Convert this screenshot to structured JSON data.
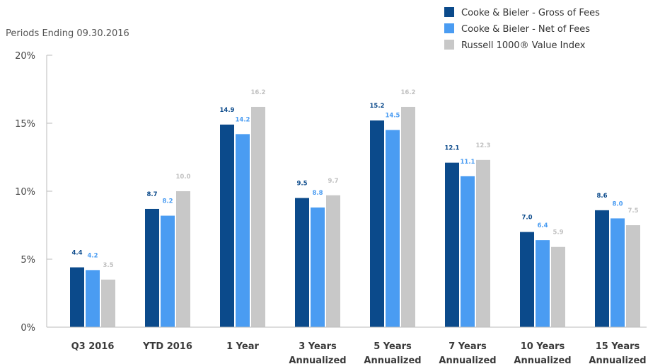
{
  "chart_data": {
    "type": "bar",
    "subtitle": "Periods Ending 09.30.2016",
    "categories": [
      [
        "Q3 2016"
      ],
      [
        "YTD 2016"
      ],
      [
        "1 Year"
      ],
      [
        "3 Years",
        "Annualized"
      ],
      [
        "5 Years",
        "Annualized"
      ],
      [
        "7 Years",
        "Annualized"
      ],
      [
        "10 Years",
        "Annualized"
      ],
      [
        "15 Years",
        "Annualized"
      ]
    ],
    "series": [
      {
        "name": "Cooke & Bieler - Gross of Fees",
        "color": "#0b4a8b",
        "values": [
          4.4,
          8.7,
          14.9,
          9.5,
          15.2,
          12.1,
          7.0,
          8.6
        ]
      },
      {
        "name": "Cooke & Bieler - Net of Fees",
        "color": "#4a9cf2",
        "values": [
          4.2,
          8.2,
          14.2,
          8.8,
          14.5,
          11.1,
          6.4,
          8.0
        ]
      },
      {
        "name": "Russell 1000® Value Index",
        "color": "#c8c8c8",
        "values": [
          3.5,
          10.0,
          16.2,
          9.7,
          16.2,
          12.3,
          5.9,
          7.5
        ]
      }
    ],
    "label_colors": [
      "#0b4a8b",
      "#4a9cf2",
      "#c0c0c0"
    ],
    "yticks": [
      {
        "value": 0,
        "label": "0%"
      },
      {
        "value": 5,
        "label": "5%"
      },
      {
        "value": 10,
        "label": "10%"
      },
      {
        "value": 15,
        "label": "15%"
      },
      {
        "value": 20,
        "label": "20%"
      }
    ],
    "ylim": [
      0,
      20
    ],
    "grid": false,
    "legend_position": "top-right"
  }
}
